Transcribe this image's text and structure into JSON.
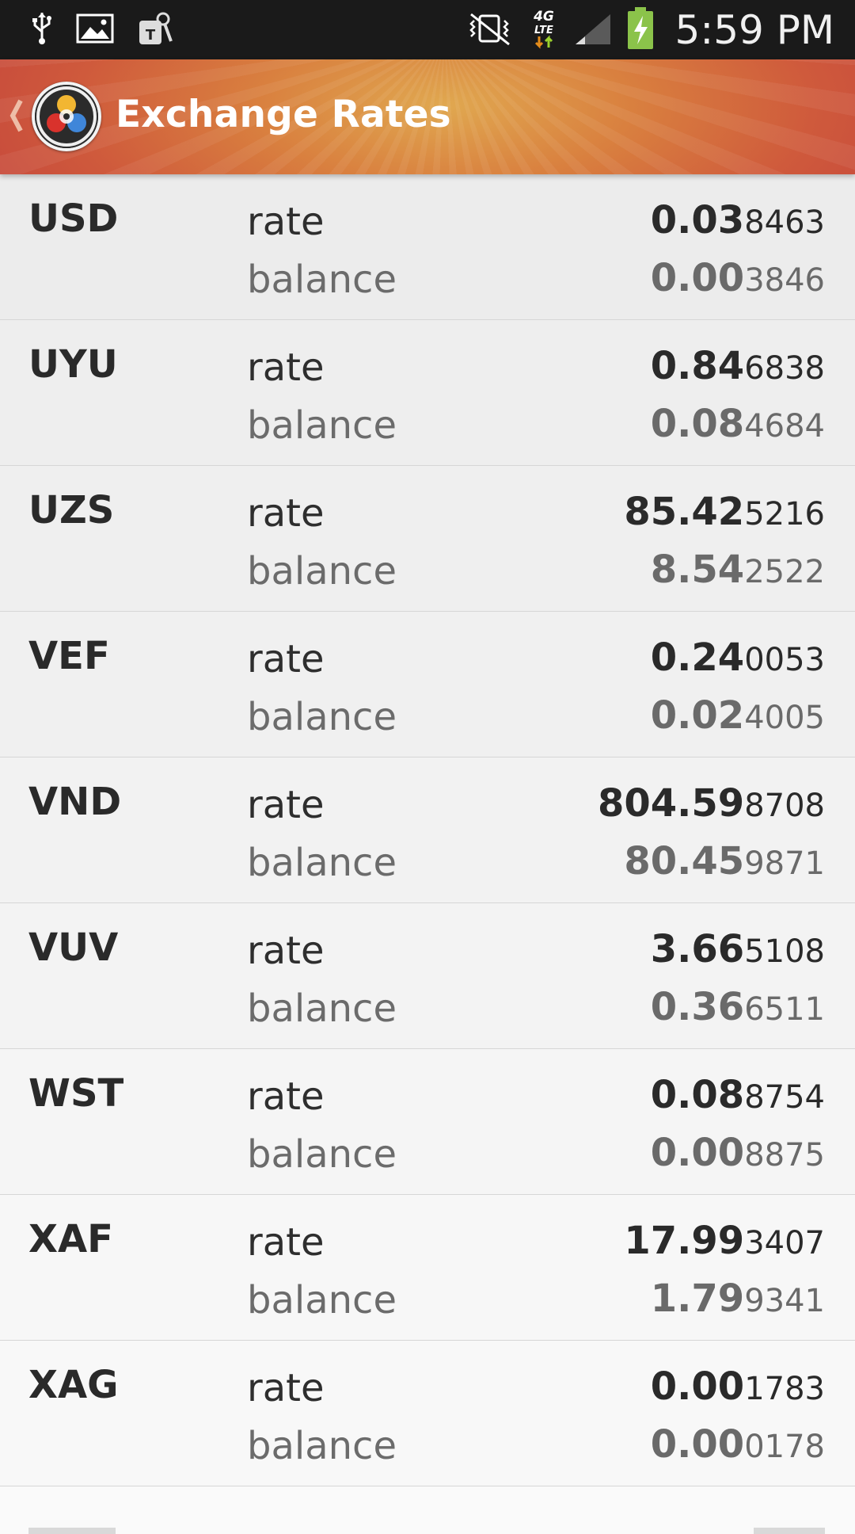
{
  "status_bar": {
    "time": "5:59 PM",
    "left_icons": [
      "usb-icon",
      "image-icon",
      "t-mobile-icon"
    ],
    "right_icons": [
      "vibrate-mute-icon",
      "4g-lte-icon",
      "signal-icon",
      "battery-charging-icon"
    ]
  },
  "app_bar": {
    "title": "Exchange Rates",
    "logo": "app-logo-icon",
    "back": "back-chevron-icon"
  },
  "labels": {
    "rate": "rate",
    "balance": "balance"
  },
  "rates": [
    {
      "code": "USD",
      "rate_major": "0.03",
      "rate_minor": "8463",
      "balance_major": "0.00",
      "balance_minor": "3846"
    },
    {
      "code": "UYU",
      "rate_major": "0.84",
      "rate_minor": "6838",
      "balance_major": "0.08",
      "balance_minor": "4684"
    },
    {
      "code": "UZS",
      "rate_major": "85.42",
      "rate_minor": "5216",
      "balance_major": "8.54",
      "balance_minor": "2522"
    },
    {
      "code": "VEF",
      "rate_major": "0.24",
      "rate_minor": "0053",
      "balance_major": "0.02",
      "balance_minor": "4005"
    },
    {
      "code": "VND",
      "rate_major": "804.59",
      "rate_minor": "8708",
      "balance_major": "80.45",
      "balance_minor": "9871"
    },
    {
      "code": "VUV",
      "rate_major": "3.66",
      "rate_minor": "5108",
      "balance_major": "0.36",
      "balance_minor": "6511"
    },
    {
      "code": "WST",
      "rate_major": "0.08",
      "rate_minor": "8754",
      "balance_major": "0.00",
      "balance_minor": "8875"
    },
    {
      "code": "XAF",
      "rate_major": "17.99",
      "rate_minor": "3407",
      "balance_major": "1.79",
      "balance_minor": "9341"
    },
    {
      "code": "XAG",
      "rate_major": "0.00",
      "rate_minor": "1783",
      "balance_major": "0.00",
      "balance_minor": "0178"
    }
  ],
  "colors": {
    "status_bar": "#1a1a1a",
    "app_bar_center": "#e0a850",
    "app_bar_edge": "#c74a3c",
    "list_background": "#f2f2f2",
    "divider": "#d6d6d6"
  }
}
